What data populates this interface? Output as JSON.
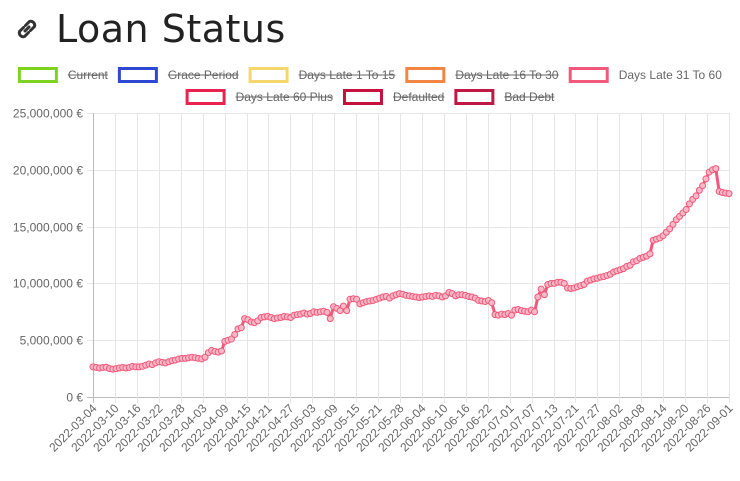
{
  "header": {
    "title": "Loan Status",
    "icon": "link-icon"
  },
  "chart_data": {
    "type": "line",
    "title": "Loan Status",
    "xlabel": "",
    "ylabel": "",
    "ylim": [
      0,
      25000000
    ],
    "y_ticks": [
      "0 €",
      "5,000,000 €",
      "10,000,000 €",
      "15,000,000 €",
      "20,000,000 €",
      "25,000,000 €"
    ],
    "x_ticks": [
      "2022-03-04",
      "2022-03-10",
      "2022-03-16",
      "2022-03-22",
      "2022-03-28",
      "2022-04-03",
      "2022-04-09",
      "2022-04-15",
      "2022-04-21",
      "2022-04-27",
      "2022-05-03",
      "2022-05-09",
      "2022-05-15",
      "2022-05-21",
      "2022-05-28",
      "2022-06-04",
      "2022-06-10",
      "2022-06-16",
      "2022-06-22",
      "2022-07-01",
      "2022-07-07",
      "2022-07-13",
      "2022-07-21",
      "2022-07-27",
      "2022-08-02",
      "2022-08-08",
      "2022-08-14",
      "2022-08-20",
      "2022-08-26",
      "2022-09-01"
    ],
    "grid": true,
    "legend_position": "top",
    "legend": [
      {
        "name": "Current",
        "color": "#7ed321",
        "hidden": true
      },
      {
        "name": "Grace Period",
        "color": "#2e49d1",
        "hidden": true
      },
      {
        "name": "Days Late 1 To 15",
        "color": "#f5d76e",
        "hidden": true
      },
      {
        "name": "Days Late 16 To 30",
        "color": "#f28444",
        "hidden": true
      },
      {
        "name": "Days Late 31 To 60",
        "color": "#f0597a",
        "hidden": false
      },
      {
        "name": "Days Late 60 Plus",
        "color": "#e8234f",
        "hidden": true
      },
      {
        "name": "Defaulted",
        "color": "#c4123c",
        "hidden": true
      },
      {
        "name": "Bad Debt",
        "color": "#c01844",
        "hidden": true
      }
    ],
    "series": [
      {
        "name": "Days Late 31 To 60",
        "color": "#f0597a",
        "values": [
          2650000,
          2600000,
          2550000,
          2600000,
          2620000,
          2500000,
          2450000,
          2500000,
          2550000,
          2600000,
          2550000,
          2600000,
          2700000,
          2650000,
          2650000,
          2700000,
          2800000,
          2900000,
          2850000,
          3000000,
          3100000,
          3050000,
          3000000,
          3100000,
          3200000,
          3250000,
          3350000,
          3400000,
          3400000,
          3450000,
          3500000,
          3450000,
          3400000,
          3350000,
          3500000,
          3900000,
          4100000,
          4000000,
          3950000,
          4050000,
          4900000,
          5000000,
          5100000,
          5500000,
          6000000,
          6100000,
          6900000,
          6800000,
          6600000,
          6550000,
          6700000,
          7000000,
          7050000,
          7100000,
          7000000,
          6900000,
          6950000,
          7000000,
          7100000,
          7050000,
          7000000,
          7200000,
          7250000,
          7300000,
          7400000,
          7300000,
          7350000,
          7500000,
          7450000,
          7500000,
          7550000,
          7450000,
          6900000,
          7950000,
          7800000,
          7600000,
          8000000,
          7600000,
          8600000,
          8650000,
          8600000,
          8200000,
          8300000,
          8400000,
          8450000,
          8500000,
          8600000,
          8700000,
          8800000,
          8850000,
          8700000,
          8900000,
          9000000,
          9100000,
          9050000,
          8950000,
          8900000,
          8850000,
          8800000,
          8750000,
          8800000,
          8850000,
          8900000,
          8850000,
          8950000,
          8900000,
          8800000,
          8900000,
          9200000,
          9100000,
          8900000,
          9000000,
          9000000,
          8950000,
          8850000,
          8800000,
          8700000,
          8500000,
          8450000,
          8400000,
          8500000,
          8300000,
          7250000,
          7200000,
          7300000,
          7250000,
          7350000,
          7200000,
          7650000,
          7700000,
          7600000,
          7550000,
          7500000,
          7650000,
          7500000,
          8800000,
          9500000,
          9000000,
          9900000,
          10000000,
          10000000,
          10100000,
          10100000,
          10000000,
          9600000,
          9550000,
          9600000,
          9700000,
          9800000,
          9900000,
          10200000,
          10300000,
          10400000,
          10450000,
          10550000,
          10600000,
          10700000,
          10800000,
          11000000,
          11100000,
          11200000,
          11300000,
          11500000,
          11600000,
          11900000,
          12000000,
          12200000,
          12300000,
          12400000,
          12600000,
          13800000,
          13900000,
          14000000,
          14200000,
          14500000,
          14800000,
          15200000,
          15600000,
          15900000,
          16200000,
          16500000,
          17000000,
          17400000,
          17700000,
          18200000,
          18600000,
          19200000,
          19800000,
          20000000,
          20100000,
          18100000,
          18000000,
          17950000,
          17900000
        ]
      }
    ]
  }
}
